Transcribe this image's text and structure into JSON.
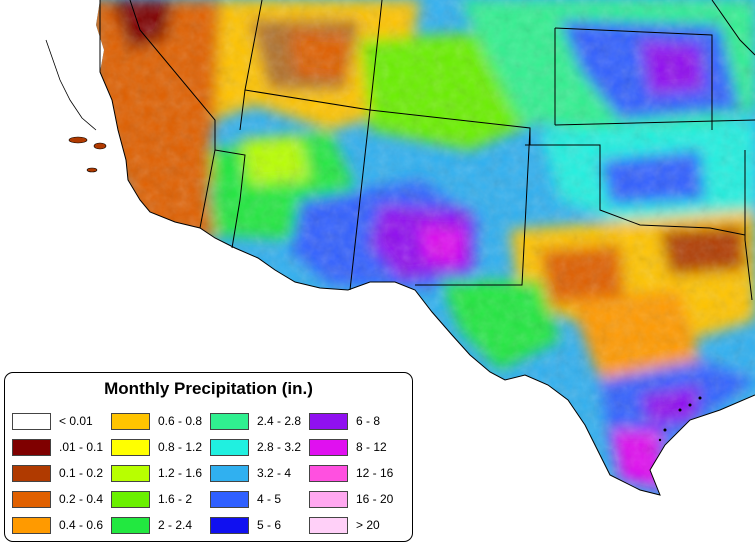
{
  "legend": {
    "title": "Monthly Precipitation (in.)",
    "columns": [
      [
        {
          "label": "< 0.01",
          "color": "#ffffff"
        },
        {
          "label": ".01 - 0.1",
          "color": "#7f0000"
        },
        {
          "label": "0.1 - 0.2",
          "color": "#b03a00"
        },
        {
          "label": "0.2 - 0.4",
          "color": "#e06000"
        },
        {
          "label": "0.4 - 0.6",
          "color": "#ff9a00"
        }
      ],
      [
        {
          "label": "0.6 - 0.8",
          "color": "#ffc400"
        },
        {
          "label": "0.8 - 1.2",
          "color": "#ffff00"
        },
        {
          "label": "1.2 - 1.6",
          "color": "#b8ff00"
        },
        {
          "label": "1.6 - 2",
          "color": "#6af000"
        },
        {
          "label": "2 - 2.4",
          "color": "#22e840"
        }
      ],
      [
        {
          "label": "2.4 - 2.8",
          "color": "#30f090"
        },
        {
          "label": "2.8 - 3.2",
          "color": "#20f0e0"
        },
        {
          "label": "3.2 - 4",
          "color": "#30b0f0"
        },
        {
          "label": "4 - 5",
          "color": "#3060ff"
        },
        {
          "label": "5 - 6",
          "color": "#1010f0"
        }
      ],
      [
        {
          "label": "6 - 8",
          "color": "#9010f0"
        },
        {
          "label": "8 - 12",
          "color": "#e010f0"
        },
        {
          "label": "12 - 16",
          "color": "#ff50e0"
        },
        {
          "label": "16 - 20",
          "color": "#ffa8f0"
        },
        {
          "label": "> 20",
          "color": "#ffd0f8"
        }
      ]
    ]
  }
}
